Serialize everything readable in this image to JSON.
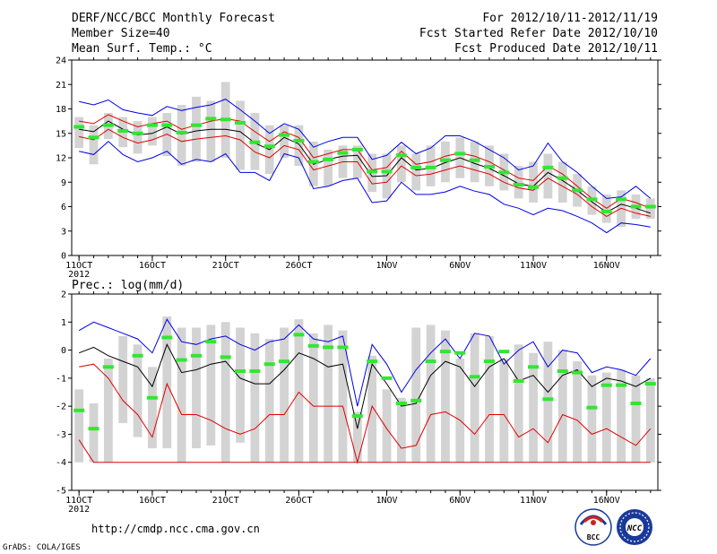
{
  "header": {
    "title": "DERF/NCC/BCC Monthly Forecast",
    "member_size": "Member Size=40",
    "variable": "Mean Surf. Temp.: °C",
    "period": "For 2012/10/11-2012/11/19",
    "started": "Fcst Started Refer Date 2012/10/10",
    "produced": "Fcst Produced Date 2012/10/11"
  },
  "footer": {
    "url": "http://cmdp.ncc.cma.gov.cn",
    "credit": "GrADS: COLA/IGES",
    "logo_bcc": "BCC",
    "logo_ncc": "NCC"
  },
  "colors": {
    "bar": "#d3d3d3",
    "envelope": "#0000e6",
    "mean": "#000000",
    "lower": "#e00000",
    "marker": "#32e632"
  },
  "chart_data": [
    {
      "type": "line",
      "title": "Mean Surf. Temp.: °C",
      "ylim": [
        0,
        24
      ],
      "yticks": [
        0,
        3,
        6,
        9,
        12,
        15,
        18,
        21,
        24
      ],
      "x_day_range": [
        11,
        50
      ],
      "x_ticks": [
        {
          "label": "11OCT",
          "day": 11
        },
        {
          "label": "16OCT",
          "day": 16
        },
        {
          "label": "21OCT",
          "day": 21
        },
        {
          "label": "26OCT",
          "day": 26
        },
        {
          "label": "1NOV",
          "day": 32
        },
        {
          "label": "6NOV",
          "day": 37
        },
        {
          "label": "11NOV",
          "day": 42
        },
        {
          "label": "16NOV",
          "day": 47
        }
      ],
      "x_year_label": "2012",
      "bar_low": [
        13.2,
        11.2,
        14.3,
        13.3,
        12.5,
        13.5,
        12.2,
        11.0,
        11.5,
        11.5,
        12.0,
        10.5,
        10.5,
        10.0,
        12.0,
        11.0,
        8.5,
        8.5,
        9.5,
        9.5,
        7.8,
        7.0,
        9.0,
        8.0,
        8.5,
        9.0,
        9.5,
        9.0,
        8.5,
        8.0,
        7.0,
        6.5,
        7.0,
        6.5,
        6.0,
        5.0,
        4.0,
        3.5,
        4.5,
        4.5
      ],
      "bar_high": [
        17.0,
        16.0,
        17.5,
        17.0,
        16.5,
        17.0,
        17.5,
        18.5,
        19.5,
        19.0,
        21.3,
        19.0,
        17.5,
        16.0,
        16.0,
        16.0,
        14.0,
        13.0,
        13.5,
        13.5,
        12.5,
        12.5,
        13.5,
        12.5,
        13.5,
        14.0,
        14.5,
        14.0,
        13.5,
        12.5,
        11.0,
        11.5,
        12.5,
        11.5,
        10.0,
        8.5,
        7.5,
        8.0,
        7.5,
        7.0
      ],
      "series": [
        {
          "name": "max",
          "color": "#0000e6",
          "values": [
            18.9,
            18.5,
            19.1,
            17.9,
            17.5,
            17.2,
            18.3,
            17.8,
            18.2,
            18.5,
            19.2,
            17.9,
            16.5,
            15.0,
            16.2,
            15.5,
            13.3,
            14.0,
            14.5,
            14.5,
            11.8,
            12.3,
            13.9,
            12.5,
            13.2,
            14.7,
            14.7,
            14.0,
            13.0,
            12.0,
            10.5,
            11.0,
            13.8,
            11.5,
            10.2,
            8.5,
            7.0,
            7.2,
            8.5,
            7.0
          ]
        },
        {
          "name": "upper",
          "color": "#e00000",
          "values": [
            16.5,
            16.2,
            17.3,
            16.5,
            15.8,
            16.2,
            16.5,
            15.5,
            16.0,
            16.5,
            16.8,
            16.5,
            15.2,
            14.0,
            15.2,
            14.5,
            12.0,
            12.5,
            13.0,
            13.0,
            10.5,
            10.8,
            12.8,
            11.2,
            11.5,
            12.2,
            12.6,
            12.2,
            11.5,
            10.5,
            9.5,
            9.2,
            11.0,
            10.0,
            8.5,
            7.0,
            5.8,
            7.0,
            6.5,
            5.8
          ]
        },
        {
          "name": "mean",
          "color": "#000000",
          "values": [
            15.5,
            15.2,
            16.5,
            15.5,
            14.8,
            15.0,
            15.8,
            14.9,
            15.3,
            15.5,
            15.5,
            15.2,
            13.8,
            13.0,
            14.5,
            13.7,
            11.2,
            11.8,
            12.2,
            12.3,
            9.7,
            9.8,
            12.0,
            10.5,
            10.7,
            11.4,
            12.0,
            11.3,
            10.7,
            9.8,
            8.8,
            8.5,
            10.2,
            9.2,
            8.0,
            6.6,
            5.3,
            6.3,
            5.8,
            5.2
          ]
        },
        {
          "name": "lower",
          "color": "#e00000",
          "values": [
            14.6,
            14.2,
            15.5,
            14.5,
            13.8,
            14.2,
            14.9,
            14.0,
            14.3,
            14.5,
            14.7,
            14.2,
            12.7,
            12.0,
            13.5,
            13.0,
            10.5,
            11.0,
            11.5,
            11.5,
            8.8,
            9.0,
            11.0,
            9.8,
            10.0,
            10.5,
            11.0,
            10.5,
            10.0,
            9.0,
            8.3,
            8.0,
            9.5,
            8.5,
            7.5,
            6.0,
            4.8,
            5.8,
            5.2,
            4.8
          ]
        },
        {
          "name": "min",
          "color": "#0000e6",
          "values": [
            12.8,
            12.4,
            14.0,
            12.4,
            11.5,
            12.0,
            12.8,
            11.2,
            11.8,
            11.5,
            12.5,
            10.2,
            10.2,
            9.2,
            12.5,
            12.0,
            8.2,
            8.5,
            9.2,
            9.5,
            6.5,
            6.7,
            9.0,
            7.5,
            7.5,
            7.8,
            8.5,
            7.9,
            7.5,
            6.3,
            5.8,
            5.0,
            5.8,
            5.5,
            4.8,
            4.0,
            2.8,
            4.0,
            3.8,
            3.5
          ]
        }
      ],
      "markers": [
        15.8,
        14.5,
        16.0,
        15.3,
        15.0,
        16.0,
        16.0,
        15.1,
        16.0,
        16.8,
        16.7,
        16.3,
        13.9,
        13.4,
        14.8,
        14.1,
        11.5,
        11.8,
        12.6,
        13.0,
        10.3,
        10.3,
        12.3,
        10.8,
        10.8,
        11.7,
        12.5,
        11.7,
        10.9,
        10.2,
        8.7,
        8.4,
        10.8,
        9.5,
        8.0,
        6.9,
        5.4,
        6.9,
        6.0,
        6.0
      ]
    },
    {
      "type": "line",
      "title": "Prec.: log(mm/d)",
      "ylim": [
        -5,
        2
      ],
      "yticks": [
        -5,
        -4,
        -3,
        -2,
        -1,
        0,
        1,
        2
      ],
      "x_day_range": [
        11,
        50
      ],
      "x_ticks": [
        {
          "label": "11OCT",
          "day": 11
        },
        {
          "label": "16OCT",
          "day": 16
        },
        {
          "label": "21OCT",
          "day": 21
        },
        {
          "label": "26OCT",
          "day": 26
        },
        {
          "label": "1NOV",
          "day": 32
        },
        {
          "label": "6NOV",
          "day": 37
        },
        {
          "label": "11NOV",
          "day": 42
        },
        {
          "label": "16NOV",
          "day": 47
        }
      ],
      "x_year_label": "2012",
      "bar_low": [
        -4,
        -4,
        -4,
        -2.6,
        -3.1,
        -3.5,
        -3.5,
        -4,
        -3.5,
        -3.4,
        -4,
        -3.3,
        -4,
        -4,
        -4,
        -4,
        -4,
        -4,
        -4,
        -4,
        -4,
        -4,
        -4,
        -4,
        -4,
        -4,
        -4,
        -4,
        -4,
        -4,
        -4,
        -4,
        -4,
        -4,
        -4,
        -4,
        -4,
        -4,
        -4,
        -4
      ],
      "bar_high": [
        -1.4,
        -1.9,
        -0.3,
        0.5,
        0.2,
        -0.6,
        1.2,
        0.8,
        0.8,
        0.9,
        1.0,
        0.8,
        0.6,
        0.4,
        0.8,
        1.1,
        0.6,
        0.9,
        0.7,
        -2.2,
        -0.2,
        -1.4,
        -1.7,
        0.8,
        0.9,
        0.7,
        -0.3,
        0.6,
        0.5,
        -0.3,
        0.2,
        -0.1,
        0.3,
        0.0,
        -0.4,
        -0.9,
        -0.8,
        -0.7,
        -0.9,
        -1.0
      ],
      "series": [
        {
          "name": "max",
          "color": "#0000e6",
          "values": [
            0.7,
            1.0,
            0.8,
            0.6,
            0.4,
            -0.1,
            1.1,
            0.3,
            0.2,
            0.4,
            0.5,
            0.2,
            0.0,
            0.3,
            0.4,
            0.9,
            0.4,
            0.3,
            0.5,
            -2.0,
            0.2,
            -0.5,
            -1.5,
            -0.7,
            -0.1,
            0.4,
            -0.3,
            0.6,
            0.5,
            -0.5,
            0.0,
            0.3,
            -0.6,
            0.0,
            -0.1,
            -0.8,
            -0.6,
            -0.7,
            -0.9,
            -0.3
          ]
        },
        {
          "name": "mean",
          "color": "#000000",
          "values": [
            -0.1,
            0.1,
            -0.2,
            -0.4,
            -0.6,
            -1.3,
            0.2,
            -0.8,
            -0.7,
            -0.5,
            -0.4,
            -1.0,
            -1.2,
            -1.2,
            -0.7,
            -0.1,
            -0.3,
            -0.6,
            -0.5,
            -2.8,
            -0.5,
            -1.2,
            -2.0,
            -1.9,
            -0.9,
            -0.4,
            -0.6,
            -1.3,
            -0.6,
            -0.3,
            -1.1,
            -0.9,
            -1.5,
            -0.9,
            -0.7,
            -1.3,
            -1.0,
            -1.1,
            -1.3,
            -1.0
          ]
        },
        {
          "name": "min",
          "color": "#e00000",
          "values": [
            -0.6,
            -0.5,
            -1.0,
            -1.8,
            -2.3,
            -3.1,
            -1.2,
            -2.3,
            -2.3,
            -2.5,
            -2.8,
            -3.0,
            -2.8,
            -2.3,
            -2.3,
            -1.5,
            -2.0,
            -2.0,
            -2.0,
            -4.0,
            -2.0,
            -2.8,
            -3.5,
            -3.4,
            -2.3,
            -2.2,
            -2.5,
            -3.0,
            -2.3,
            -2.3,
            -3.1,
            -2.8,
            -3.3,
            -2.3,
            -2.5,
            -3.0,
            -2.8,
            -3.1,
            -3.4,
            -2.8
          ]
        },
        {
          "name": "floor",
          "color": "#e00000",
          "values": [
            -3.2,
            -4,
            -4,
            -4,
            -4,
            -4,
            -4,
            -4,
            -4,
            -4,
            -4,
            -4,
            -4,
            -4,
            -4,
            -4,
            -4,
            -4,
            -4,
            -4,
            -4,
            -4,
            -4,
            -4,
            -4,
            -4,
            -4,
            -4,
            -4,
            -4,
            -4,
            -4,
            -4,
            -4,
            -4,
            -4,
            -4,
            -4,
            -4,
            -4
          ]
        }
      ],
      "markers": [
        -2.15,
        -2.8,
        -0.6,
        null,
        -0.2,
        -1.7,
        0.45,
        -0.35,
        -0.2,
        0.3,
        -0.25,
        -0.75,
        -0.75,
        -0.5,
        -0.4,
        0.55,
        0.15,
        0.1,
        0.1,
        -2.35,
        -0.4,
        -1.0,
        -1.9,
        -1.8,
        -0.4,
        -0.05,
        -0.1,
        -0.95,
        -0.4,
        -0.05,
        -1.1,
        -0.6,
        -1.75,
        -0.75,
        -0.8,
        -2.05,
        -1.25,
        -1.25,
        -1.9,
        -1.2
      ]
    }
  ]
}
